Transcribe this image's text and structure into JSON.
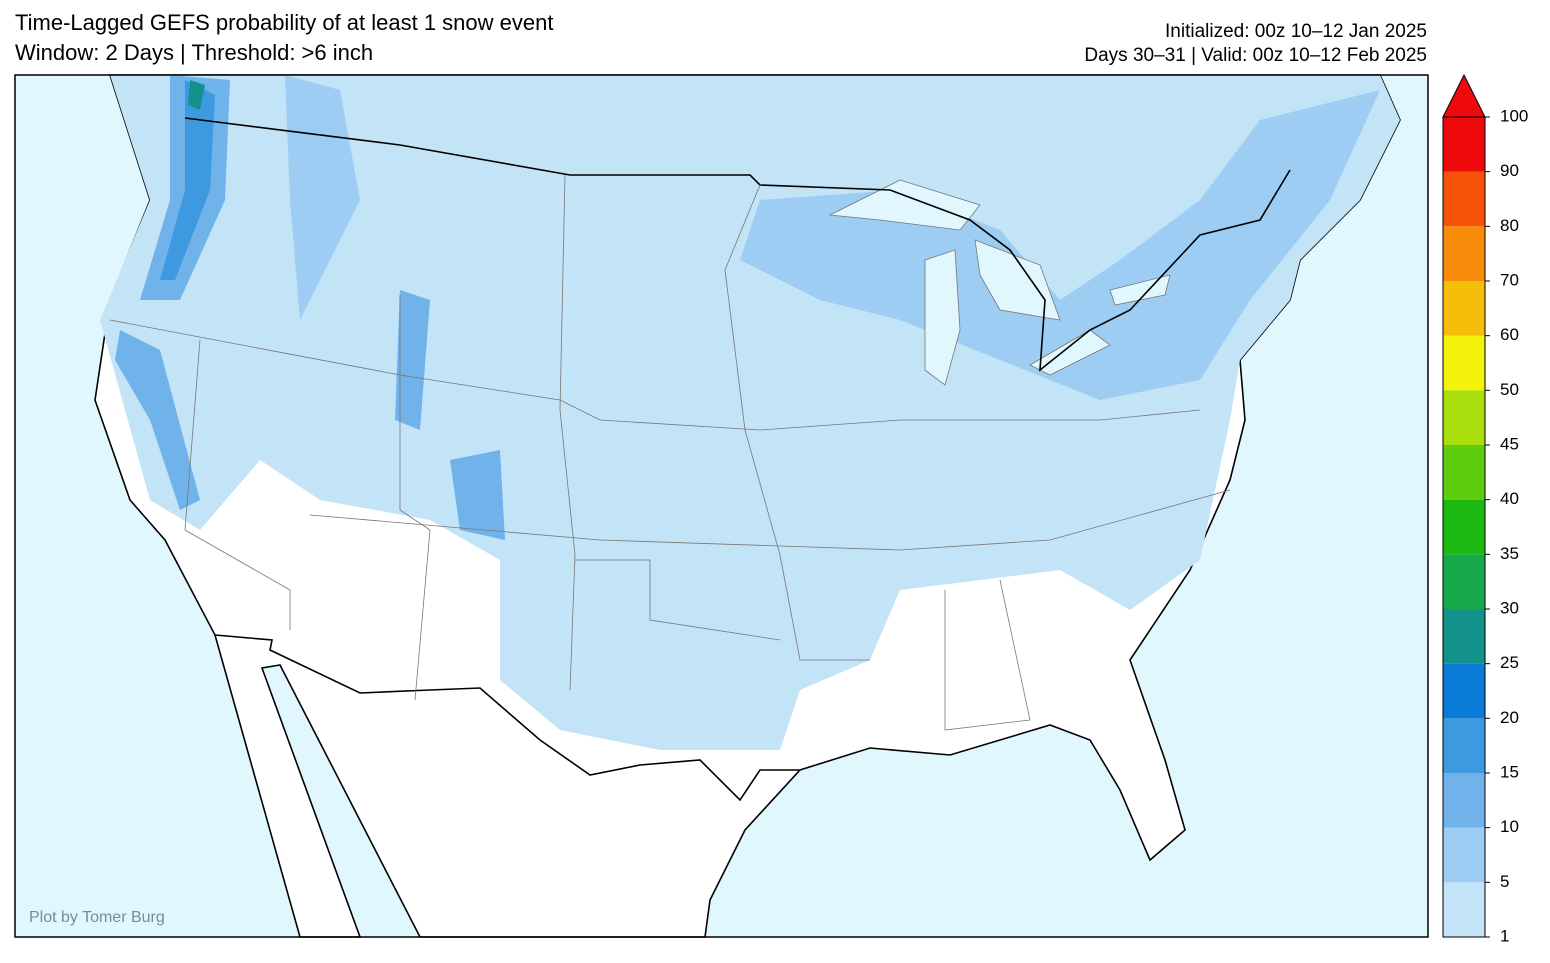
{
  "header": {
    "title": [
      "Time-Lagged GEFS probability of at least 1 snow event",
      "Window: 2 Days | Threshold: >6 inch"
    ],
    "info": [
      "Initialized: 00z 10–12 Jan 2025",
      "Days 30–31 | Valid: 00z 10–12 Feb 2025"
    ]
  },
  "credit": "Plot by Tomer Burg",
  "colorbar": {
    "ticks": [
      1,
      5,
      10,
      15,
      20,
      25,
      30,
      35,
      40,
      45,
      50,
      60,
      70,
      80,
      90,
      100
    ],
    "colors": [
      "#c3e3f7",
      "#9dcdf3",
      "#6fb3ea",
      "#3d99e0",
      "#0a7bd6",
      "#12928a",
      "#17a84a",
      "#1cba10",
      "#5fcd0c",
      "#a9dd0c",
      "#f2f20a",
      "#f5be0a",
      "#f78c0a",
      "#f8530a",
      "#ee0a0a"
    ]
  }
}
